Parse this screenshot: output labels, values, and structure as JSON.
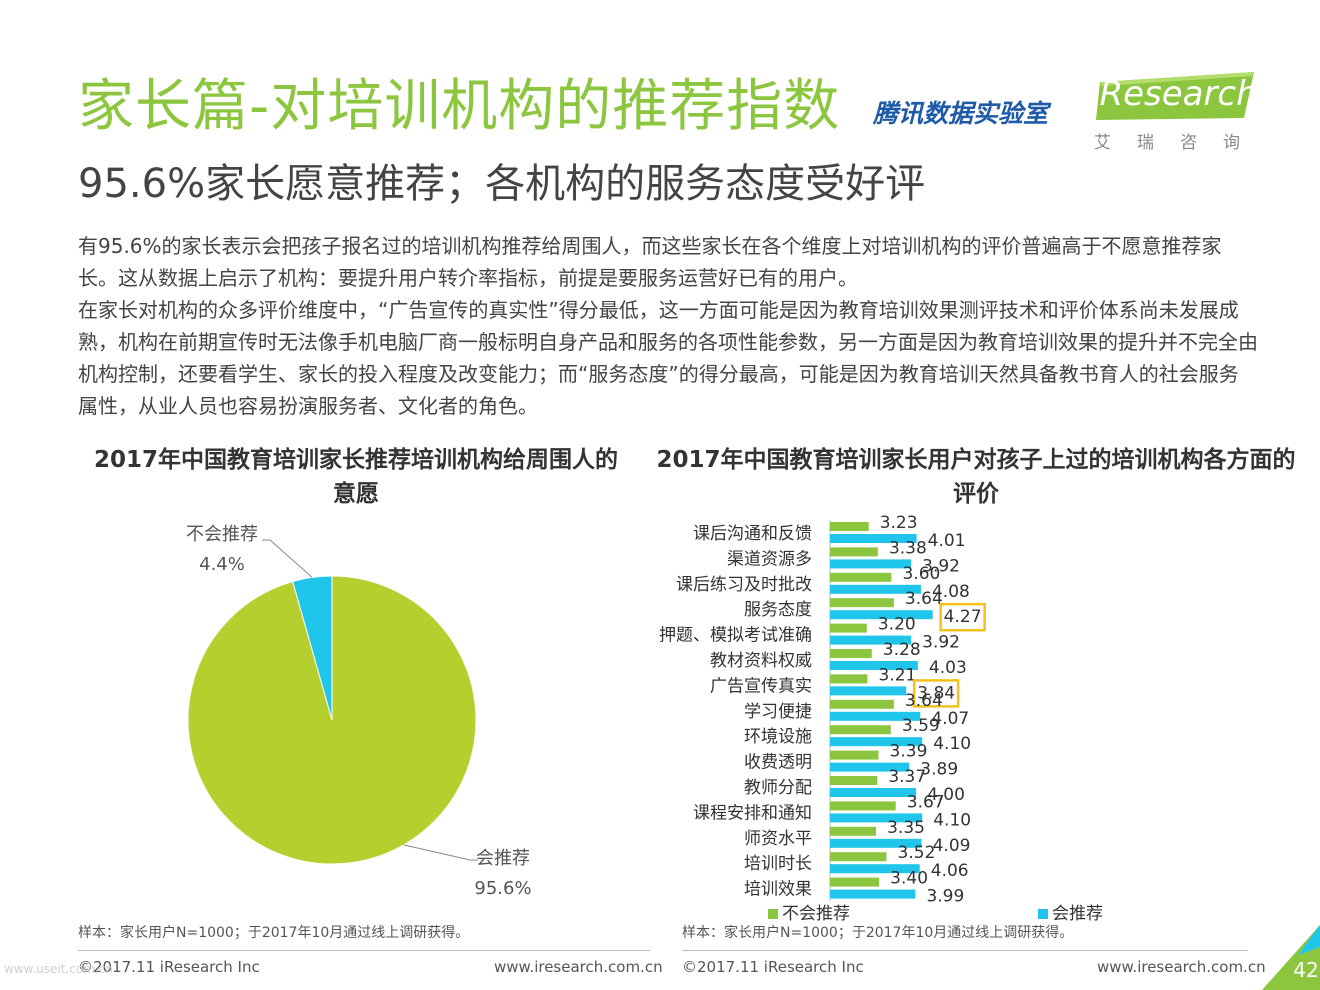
{
  "header": {
    "title": "家长篇-对培训机构的推荐指数",
    "partner": "腾讯数据实验室",
    "logo_brand": "iResearch",
    "logo_sub": "艾瑞咨询"
  },
  "subtitle": "95.6%家长愿意推荐；各机构的服务态度受好评",
  "paragraphs": [
    "有95.6%的家长表示会把孩子报名过的培训机构推荐给周围人，而这些家长在各个维度上对培训机构的评价普遍高于不愿意推荐家长。这从数据上启示了机构：要提升用户转介率指标，前提是要服务运营好已有的用户。",
    "在家长对机构的众多评价维度中，“广告宣传的真实性”得分最低，这一方面可能是因为教育培训效果测评技术和评价体系尚未发展成熟，机构在前期宣传时无法像手机电脑厂商一般标明自身产品和服务的各项性能参数，另一方面是因为教育培训效果的提升并不完全由机构控制，还要看学生、家长的投入程度及改变能力；而“服务态度”的得分最高，可能是因为教育培训天然具备教书育人的社会服务属性，从业人员也容易扮演服务者、文化者的角色。"
  ],
  "chart_data": [
    {
      "type": "pie",
      "title": "2017年中国教育培训家长推荐培训机构给周围人的意愿",
      "slices": [
        {
          "name": "会推荐",
          "value": 95.6,
          "label": "95.6%",
          "color": "#b5cf2f"
        },
        {
          "name": "不会推荐",
          "value": 4.4,
          "label": "4.4%",
          "color": "#1fc5ea"
        }
      ]
    },
    {
      "type": "bar",
      "orientation": "horizontal",
      "title": "2017年中国教育培训家长用户对孩子上过的培训机构各方面的评价",
      "categories": [
        "课后沟通和反馈",
        "渠道资源多",
        "课后练习及时批改",
        "服务态度",
        "押题、模拟考试准确",
        "教材资料权威",
        "广告宣传真实",
        "学习便捷",
        "环境设施",
        "收费透明",
        "教师分配",
        "课程安排和通知",
        "师资水平",
        "培训时长",
        "培训效果"
      ],
      "series": [
        {
          "name": "不会推荐",
          "color": "#8cc63f",
          "values": [
            3.23,
            3.38,
            3.6,
            3.64,
            3.2,
            3.28,
            3.21,
            3.64,
            3.59,
            3.39,
            3.37,
            3.67,
            3.35,
            3.52,
            3.4
          ],
          "labels": [
            "3.23",
            "3.38",
            "3.60",
            "3.64",
            "3.20",
            "3.28",
            "3.21",
            "3.64",
            "3.59",
            "3.39",
            "3.37",
            "3.67",
            "3.35",
            "3.52",
            "3.40"
          ]
        },
        {
          "name": "会推荐",
          "color": "#1fc5ea",
          "values": [
            4.01,
            3.92,
            4.08,
            4.27,
            3.92,
            4.03,
            3.84,
            4.07,
            4.1,
            3.89,
            4.0,
            4.1,
            4.09,
            4.06,
            3.99
          ],
          "labels": [
            "4.01",
            "3.92",
            "4.08",
            "4.27",
            "3.92",
            "4.03",
            "3.84",
            "4.07",
            "4.10",
            "3.89",
            "4.00",
            "4.10",
            "4.09",
            "4.06",
            "3.99"
          ]
        }
      ],
      "highlighted": [
        "4.27",
        "3.84"
      ],
      "highlight_color": "#f2c21b",
      "legend_position": "bottom"
    }
  ],
  "notes": {
    "left": "样本：家长用户N=1000；于2017年10月通过线上调研获得。",
    "right": "样本：家长用户N=1000；于2017年10月通过线上调研获得。"
  },
  "footer": {
    "copyright_left": "©2017.11 iResearch Inc",
    "site_left": "www.iresearch.com.cn",
    "copyright_right": "©2017.11 iResearch Inc",
    "site_right": "www.iresearch.com.cn",
    "page_number": "42",
    "watermark": "www.useit.com.cn"
  }
}
